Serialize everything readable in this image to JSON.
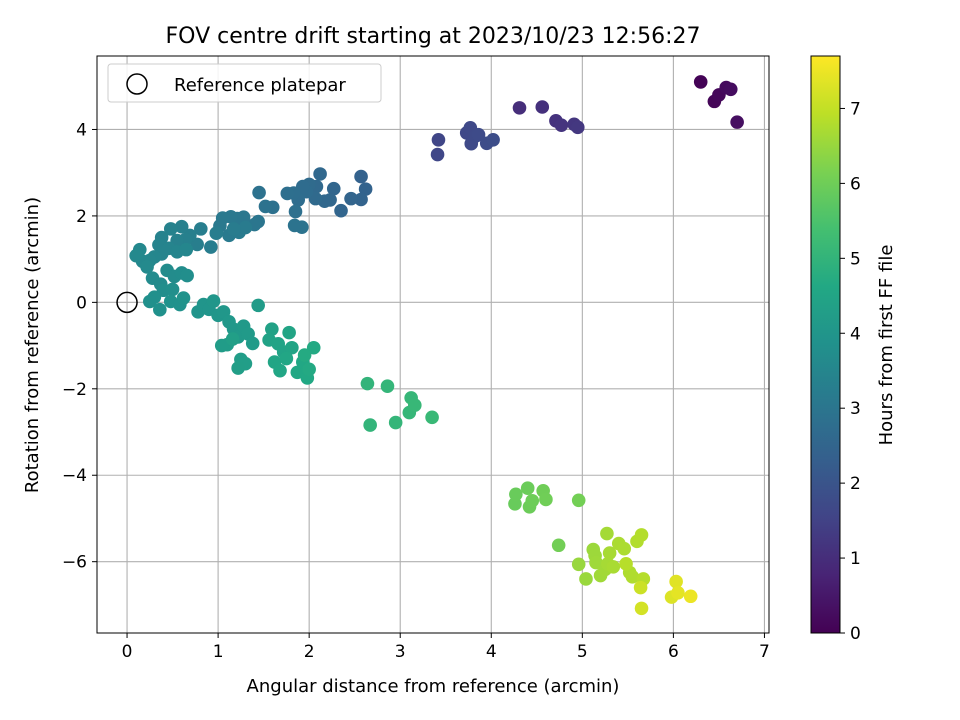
{
  "chart_data": {
    "type": "scatter",
    "title": "FOV centre drift starting at 2023/10/23 12:56:27",
    "xlabel": "Angular distance from reference (arcmin)",
    "ylabel": "Rotation from reference (arcmin)",
    "xlim": [
      -0.33,
      7.05
    ],
    "ylim": [
      -7.65,
      5.7
    ],
    "xticks": [
      0,
      1,
      2,
      3,
      4,
      5,
      6,
      7
    ],
    "yticks": [
      -6,
      -4,
      -2,
      0,
      2,
      4
    ],
    "grid": true,
    "legend": {
      "position": "top-left",
      "entries": [
        "Reference platepar"
      ]
    },
    "reference_point": {
      "x": 0,
      "y": 0
    },
    "colorbar": {
      "label": "Hours from first FF file",
      "colormap": "viridis",
      "range": [
        0,
        7.7
      ],
      "ticks": [
        0,
        1,
        2,
        3,
        4,
        5,
        6,
        7
      ]
    },
    "points": [
      [
        6.3,
        5.1,
        0.05
      ],
      [
        6.45,
        4.65,
        0.1
      ],
      [
        6.5,
        4.8,
        0.15
      ],
      [
        6.58,
        4.97,
        0.2
      ],
      [
        6.63,
        4.93,
        0.25
      ],
      [
        6.7,
        4.17,
        0.3
      ],
      [
        4.31,
        4.5,
        1.0
      ],
      [
        4.56,
        4.52,
        1.05
      ],
      [
        4.71,
        4.2,
        1.1
      ],
      [
        4.77,
        4.1,
        1.15
      ],
      [
        4.91,
        4.12,
        1.2
      ],
      [
        4.95,
        4.05,
        1.25
      ],
      [
        3.42,
        3.76,
        1.6
      ],
      [
        3.41,
        3.42,
        1.62
      ],
      [
        3.73,
        3.92,
        1.65
      ],
      [
        3.77,
        4.04,
        1.68
      ],
      [
        3.78,
        3.67,
        1.7
      ],
      [
        3.83,
        3.85,
        1.72
      ],
      [
        3.86,
        3.88,
        1.75
      ],
      [
        3.95,
        3.68,
        1.78
      ],
      [
        4.02,
        3.76,
        1.8
      ],
      [
        2.57,
        2.91,
        2.4
      ],
      [
        2.62,
        2.62,
        2.42
      ],
      [
        2.57,
        2.38,
        2.45
      ],
      [
        2.46,
        2.4,
        2.48
      ],
      [
        2.35,
        2.12,
        2.5
      ],
      [
        2.27,
        2.63,
        2.52
      ],
      [
        2.23,
        2.37,
        2.55
      ],
      [
        2.12,
        2.97,
        2.58
      ],
      [
        2.17,
        2.34,
        2.6
      ],
      [
        2.08,
        2.68,
        2.62
      ],
      [
        2.07,
        2.4,
        2.65
      ],
      [
        2.0,
        2.73,
        2.68
      ],
      [
        1.97,
        2.56,
        2.7
      ],
      [
        1.93,
        2.68,
        2.72
      ],
      [
        1.88,
        2.37,
        2.75
      ],
      [
        1.83,
        2.53,
        2.78
      ],
      [
        1.76,
        2.52,
        2.8
      ],
      [
        1.85,
        2.1,
        2.82
      ],
      [
        1.6,
        2.2,
        2.85
      ],
      [
        1.52,
        2.22,
        2.88
      ],
      [
        1.45,
        2.54,
        2.9
      ],
      [
        1.92,
        1.74,
        2.92
      ],
      [
        1.84,
        1.78,
        2.94
      ],
      [
        1.44,
        1.87,
        3.0
      ],
      [
        1.4,
        1.8,
        3.02
      ],
      [
        1.28,
        1.97,
        3.04
      ],
      [
        1.21,
        1.94,
        3.06
      ],
      [
        1.14,
        1.98,
        3.08
      ],
      [
        1.05,
        1.95,
        3.1
      ],
      [
        1.02,
        1.77,
        3.12
      ],
      [
        1.12,
        1.55,
        3.14
      ],
      [
        1.23,
        1.62,
        3.16
      ],
      [
        1.3,
        1.73,
        3.18
      ],
      [
        1.17,
        1.7,
        3.2
      ],
      [
        0.98,
        1.6,
        3.22
      ],
      [
        0.92,
        1.28,
        3.24
      ],
      [
        0.81,
        1.7,
        3.26
      ],
      [
        0.77,
        1.34,
        3.28
      ],
      [
        0.69,
        1.55,
        3.3
      ],
      [
        0.64,
        1.45,
        3.32
      ],
      [
        0.6,
        1.75,
        3.34
      ],
      [
        0.55,
        1.43,
        3.36
      ],
      [
        0.48,
        1.7,
        3.38
      ],
      [
        0.38,
        1.5,
        3.4
      ],
      [
        0.35,
        1.33,
        3.42
      ],
      [
        0.38,
        1.12,
        3.44
      ],
      [
        0.46,
        1.25,
        3.46
      ],
      [
        0.55,
        1.17,
        3.48
      ],
      [
        0.65,
        1.22,
        3.5
      ],
      [
        0.3,
        1.05,
        3.52
      ],
      [
        0.25,
        0.97,
        3.54
      ],
      [
        0.17,
        0.95,
        3.56
      ],
      [
        0.14,
        1.22,
        3.58
      ],
      [
        0.1,
        1.08,
        3.6
      ],
      [
        0.22,
        0.82,
        3.62
      ],
      [
        0.28,
        0.56,
        3.65
      ],
      [
        0.37,
        0.42,
        3.67
      ],
      [
        0.44,
        0.74,
        3.69
      ],
      [
        0.52,
        0.6,
        3.71
      ],
      [
        0.6,
        0.68,
        3.73
      ],
      [
        0.66,
        0.62,
        3.75
      ],
      [
        0.4,
        0.28,
        3.77
      ],
      [
        0.5,
        0.3,
        3.79
      ],
      [
        0.3,
        0.12,
        3.81
      ],
      [
        0.25,
        0.02,
        3.83
      ],
      [
        0.36,
        -0.17,
        3.85
      ],
      [
        0.48,
        0.02,
        3.87
      ],
      [
        0.58,
        -0.05,
        3.89
      ],
      [
        0.62,
        0.1,
        3.91
      ],
      [
        0.78,
        -0.22,
        3.95
      ],
      [
        0.84,
        -0.05,
        3.97
      ],
      [
        0.9,
        -0.16,
        3.99
      ],
      [
        0.95,
        0.03,
        4.01
      ],
      [
        1.0,
        -0.3,
        4.03
      ],
      [
        1.06,
        -0.22,
        4.05
      ],
      [
        1.12,
        -0.45,
        4.07
      ],
      [
        1.17,
        -0.62,
        4.09
      ],
      [
        1.22,
        -0.8,
        4.11
      ],
      [
        1.28,
        -0.55,
        4.13
      ],
      [
        1.33,
        -0.73,
        4.15
      ],
      [
        1.38,
        -0.95,
        4.17
      ],
      [
        1.44,
        -0.07,
        4.19
      ],
      [
        1.1,
        -0.98,
        4.21
      ],
      [
        1.04,
        -1.0,
        4.23
      ],
      [
        1.25,
        -1.32,
        4.25
      ],
      [
        1.3,
        -1.42,
        4.27
      ],
      [
        1.22,
        -1.52,
        4.29
      ],
      [
        1.16,
        -0.85,
        4.31
      ],
      [
        1.59,
        -0.62,
        4.4
      ],
      [
        1.56,
        -0.87,
        4.42
      ],
      [
        1.66,
        -0.96,
        4.44
      ],
      [
        1.72,
        -1.15,
        4.46
      ],
      [
        1.78,
        -0.7,
        4.48
      ],
      [
        1.81,
        -1.05,
        4.5
      ],
      [
        1.62,
        -1.38,
        4.52
      ],
      [
        1.68,
        -1.58,
        4.54
      ],
      [
        1.75,
        -1.3,
        4.56
      ],
      [
        1.87,
        -1.62,
        4.58
      ],
      [
        1.93,
        -1.38,
        4.6
      ],
      [
        1.98,
        -1.75,
        4.62
      ],
      [
        2.05,
        -1.05,
        4.64
      ],
      [
        2.0,
        -1.55,
        4.66
      ],
      [
        1.95,
        -1.22,
        4.68
      ],
      [
        2.64,
        -1.88,
        5.0
      ],
      [
        2.67,
        -2.84,
        5.02
      ],
      [
        2.86,
        -1.94,
        5.04
      ],
      [
        2.95,
        -2.78,
        5.06
      ],
      [
        3.1,
        -2.55,
        5.08
      ],
      [
        3.12,
        -2.21,
        5.1
      ],
      [
        3.16,
        -2.38,
        5.12
      ],
      [
        3.35,
        -2.66,
        5.14
      ],
      [
        4.26,
        -4.66,
        5.9
      ],
      [
        4.27,
        -4.44,
        5.92
      ],
      [
        4.4,
        -4.3,
        5.94
      ],
      [
        4.42,
        -4.73,
        5.96
      ],
      [
        4.45,
        -4.59,
        5.98
      ],
      [
        4.57,
        -4.36,
        6.0
      ],
      [
        4.6,
        -4.56,
        6.02
      ],
      [
        4.74,
        -5.62,
        6.04
      ],
      [
        4.96,
        -4.58,
        6.06
      ],
      [
        4.96,
        -6.06,
        6.5
      ],
      [
        5.04,
        -6.4,
        6.52
      ],
      [
        5.12,
        -5.72,
        6.54
      ],
      [
        5.14,
        -5.86,
        6.56
      ],
      [
        5.15,
        -6.02,
        6.58
      ],
      [
        5.2,
        -6.32,
        6.6
      ],
      [
        5.25,
        -6.18,
        6.62
      ],
      [
        5.27,
        -5.35,
        6.64
      ],
      [
        5.28,
        -6.05,
        6.66
      ],
      [
        5.3,
        -5.8,
        6.68
      ],
      [
        5.34,
        -6.12,
        6.7
      ],
      [
        5.4,
        -5.58,
        6.72
      ],
      [
        5.46,
        -5.7,
        6.74
      ],
      [
        5.52,
        -6.25,
        6.76
      ],
      [
        5.55,
        -6.35,
        6.78
      ],
      [
        5.6,
        -5.53,
        6.8
      ],
      [
        5.65,
        -5.38,
        6.82
      ],
      [
        5.67,
        -6.4,
        6.84
      ],
      [
        5.48,
        -6.05,
        6.86
      ],
      [
        5.64,
        -6.6,
        7.1
      ],
      [
        5.65,
        -7.08,
        7.2
      ],
      [
        5.98,
        -6.82,
        7.3
      ],
      [
        6.03,
        -6.46,
        7.35
      ],
      [
        6.05,
        -6.72,
        7.4
      ],
      [
        6.19,
        -6.8,
        7.5
      ]
    ]
  }
}
